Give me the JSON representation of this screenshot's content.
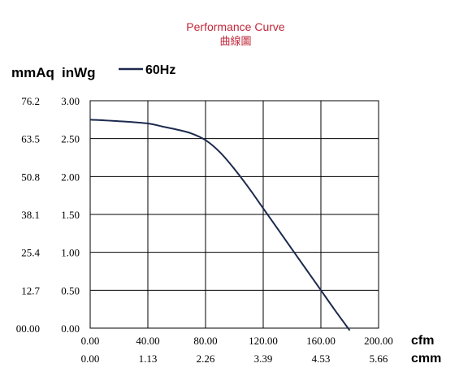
{
  "chart_data": {
    "type": "line",
    "title": "Performance Curve",
    "subtitle": "曲線圖",
    "y_units": {
      "primary": "inWg",
      "secondary": "mmAq"
    },
    "x_units": {
      "primary": "cfm",
      "secondary": "cmm"
    },
    "legend": {
      "position": "top-left",
      "entries": [
        "60Hz"
      ]
    },
    "grid": true,
    "xlim": [
      0,
      200
    ],
    "ylim": [
      0,
      3.0
    ],
    "x_ticks": [
      {
        "value": 0,
        "cfm": "0.00",
        "cmm": "0.00"
      },
      {
        "value": 40,
        "cfm": "40.00",
        "cmm": "1.13"
      },
      {
        "value": 80,
        "cfm": "80.00",
        "cmm": "2.26"
      },
      {
        "value": 120,
        "cfm": "120.00",
        "cmm": "3.39"
      },
      {
        "value": 160,
        "cfm": "160.00",
        "cmm": "4.53"
      },
      {
        "value": 200,
        "cfm": "200.00",
        "cmm": "5.66"
      }
    ],
    "y_ticks": [
      {
        "value": 3.0,
        "inwg": "3.00",
        "mmaq": "76.2"
      },
      {
        "value": 2.5,
        "inwg": "2.50",
        "mmaq": "63.5"
      },
      {
        "value": 2.0,
        "inwg": "2.00",
        "mmaq": "50.8"
      },
      {
        "value": 1.5,
        "inwg": "1.50",
        "mmaq": "38.1"
      },
      {
        "value": 1.0,
        "inwg": "1.00",
        "mmaq": "25.4"
      },
      {
        "value": 0.5,
        "inwg": "0.50",
        "mmaq": "12.7"
      },
      {
        "value": 0.0,
        "inwg": "0.00",
        "mmaq": "00.00"
      }
    ],
    "series": [
      {
        "name": "60Hz",
        "color": "#1c2a4e",
        "x": [
          0,
          20,
          40,
          50,
          60,
          70,
          80,
          90,
          100,
          110,
          120,
          130,
          140,
          150,
          160,
          170,
          180
        ],
        "y": [
          2.75,
          2.73,
          2.7,
          2.66,
          2.62,
          2.57,
          2.48,
          2.32,
          2.1,
          1.85,
          1.58,
          1.31,
          1.04,
          0.77,
          0.5,
          0.23,
          -0.03
        ]
      }
    ]
  },
  "colors": {
    "title": "#c0283a",
    "axis": "#000000",
    "grid": "#000000",
    "curve": "#1c2a4e"
  }
}
